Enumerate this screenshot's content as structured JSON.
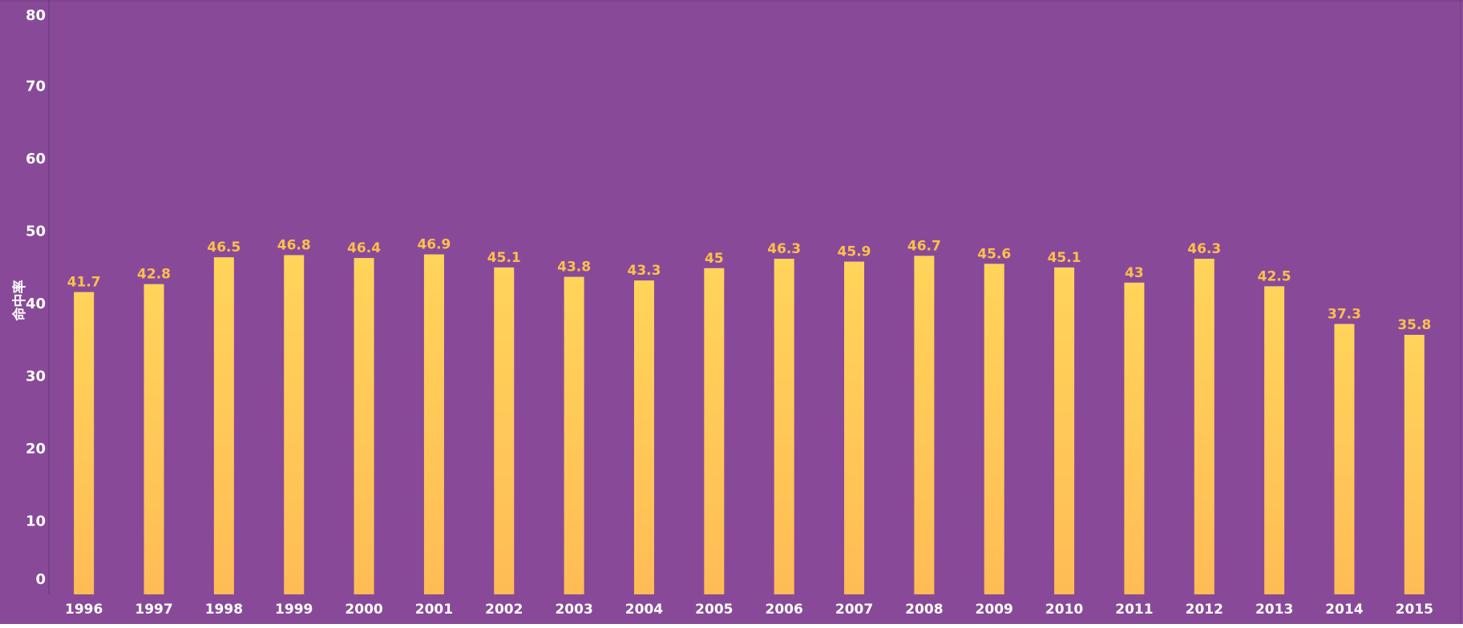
{
  "chart_data": {
    "type": "bar",
    "title": "",
    "xlabel": "",
    "ylabel": "命中率",
    "categories": [
      "1996",
      "1997",
      "1998",
      "1999",
      "2000",
      "2001",
      "2002",
      "2003",
      "2004",
      "2005",
      "2006",
      "2007",
      "2008",
      "2009",
      "2010",
      "2011",
      "2012",
      "2013",
      "2014",
      "2015"
    ],
    "series": [
      {
        "values": [
          41.7,
          42.8,
          46.5,
          46.8,
          46.4,
          46.9,
          45.1,
          43.8,
          43.3,
          45,
          46.3,
          45.9,
          46.7,
          45.6,
          45.1,
          43,
          46.3,
          42.5,
          37.3,
          35.8
        ]
      }
    ],
    "ylim": [
      0,
      80
    ],
    "yticks": [
      0,
      10,
      20,
      30,
      40,
      50,
      60,
      70,
      80
    ],
    "grid": false,
    "legend": "none",
    "data_labels": true
  },
  "colors": {
    "background": "#884a98",
    "bar_top": "#ffd45a",
    "bar_bottom": "#ffbc55",
    "data_label": "#ffc04a",
    "axis_text": "#ffffff",
    "axis_line": "#6f3d80"
  }
}
